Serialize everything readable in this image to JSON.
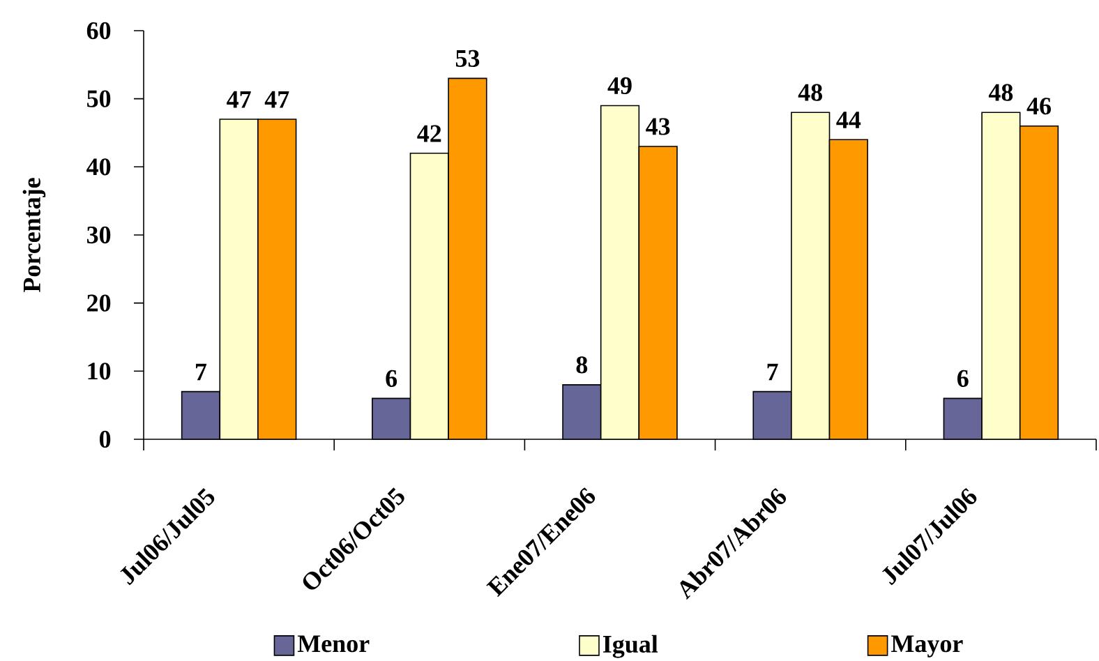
{
  "chart_data": {
    "type": "bar",
    "ylabel": "Porcentaje",
    "categories": [
      "Jul06/Jul05",
      "Oct06/Oct05",
      "Ene07/Ene06",
      "Abr07/Abr06",
      "Jul07/Jul06"
    ],
    "series": [
      {
        "name": "Menor",
        "color": "#666699",
        "values": [
          7,
          6,
          8,
          7,
          6
        ]
      },
      {
        "name": "Igual",
        "color": "#ffffcc",
        "values": [
          47,
          42,
          49,
          48,
          48
        ]
      },
      {
        "name": "Mayor",
        "color": "#ff9900",
        "values": [
          47,
          53,
          43,
          44,
          46
        ]
      }
    ],
    "ylim": [
      0,
      60
    ],
    "yticks": [
      0,
      10,
      20,
      30,
      40,
      50,
      60
    ],
    "data_labels": true,
    "legend": "bottom"
  }
}
